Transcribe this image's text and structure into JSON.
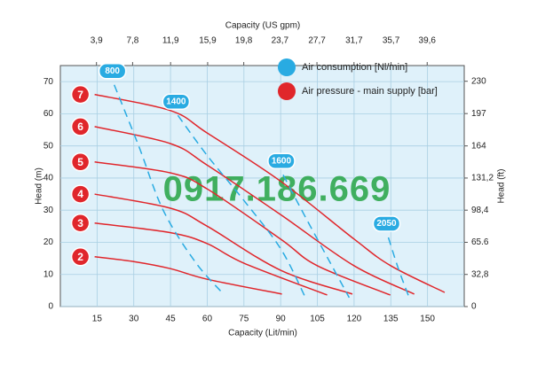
{
  "chart_data": {
    "type": "line",
    "x_title": "Capacity (Lit/min)",
    "x2_title": "Capacity (US gpm)",
    "y_title": "Head (m)",
    "y2_title": "Head (ft)",
    "xlim": [
      0,
      165
    ],
    "xticks": [
      15,
      30,
      45,
      60,
      75,
      90,
      105,
      120,
      135,
      150
    ],
    "x2lim": [
      0,
      43.6
    ],
    "x2ticks": [
      {
        "value": 3.9,
        "label": "3,9"
      },
      {
        "value": 7.8,
        "label": "7,8"
      },
      {
        "value": 11.9,
        "label": "11,9"
      },
      {
        "value": 15.9,
        "label": "15,9"
      },
      {
        "value": 19.8,
        "label": "19,8"
      },
      {
        "value": 23.7,
        "label": "23,7"
      },
      {
        "value": 27.7,
        "label": "27,7"
      },
      {
        "value": 31.7,
        "label": "31,7"
      },
      {
        "value": 35.7,
        "label": "35,7"
      },
      {
        "value": 39.6,
        "label": "39,6"
      }
    ],
    "ylim": [
      0,
      75
    ],
    "yticks": [
      0,
      10,
      20,
      30,
      40,
      50,
      60,
      70
    ],
    "y2lim": [
      0,
      246
    ],
    "y2ticks": [
      0,
      {
        "value": 32.8,
        "label": "32,8"
      },
      65.6,
      {
        "value": 98.4,
        "label": "98,4"
      },
      {
        "value": 131.2,
        "label": "131,2"
      },
      164,
      197,
      230
    ],
    "grid": true,
    "legend": [
      {
        "label": "Air consumption  [Nl/min]",
        "color": "#29abe2"
      },
      {
        "label": "Air pressure - main supply  [bar]",
        "color": "#e0262b"
      }
    ],
    "watermark": "0917.186.669",
    "series": [
      {
        "name": "7",
        "color": "#e0262b",
        "style": "solid",
        "x": [
          14,
          45,
          60,
          90,
          120,
          135,
          157
        ],
        "values": [
          66,
          61,
          54,
          39,
          21,
          12.7,
          4.4
        ]
      },
      {
        "name": "6",
        "color": "#e0262b",
        "style": "solid",
        "x": [
          14,
          45,
          60,
          90,
          120,
          144.6
        ],
        "values": [
          56,
          50.7,
          44,
          28.6,
          12.7,
          3.9
        ]
      },
      {
        "name": "5",
        "color": "#e0262b",
        "style": "solid",
        "x": [
          14,
          45,
          60,
          90,
          105,
          134.8
        ],
        "values": [
          45,
          41.6,
          36.6,
          21,
          12.7,
          3.6
        ]
      },
      {
        "name": "4",
        "color": "#e0262b",
        "style": "solid",
        "x": [
          14,
          45,
          60,
          90,
          119.3
        ],
        "values": [
          35,
          30.6,
          25,
          11.3,
          3.9
        ]
      },
      {
        "name": "3",
        "color": "#e0262b",
        "style": "solid",
        "x": [
          14,
          45,
          60,
          75,
          109
        ],
        "values": [
          26,
          23,
          19.6,
          13.5,
          3.6
        ]
      },
      {
        "name": "2",
        "color": "#e0262b",
        "style": "solid",
        "x": [
          14,
          30,
          45,
          60,
          90.5
        ],
        "values": [
          15.5,
          14,
          11.8,
          8.5,
          3.9
        ]
      },
      {
        "name": "800",
        "color": "#29abe2",
        "style": "dashed",
        "x": [
          22,
          32,
          42,
          55,
          66
        ],
        "values": [
          69,
          50,
          30,
          14,
          4.4
        ]
      },
      {
        "name": "1400",
        "color": "#29abe2",
        "style": "dashed",
        "x": [
          48,
          60,
          75,
          90,
          100
        ],
        "values": [
          59.5,
          47,
          33,
          18,
          3
        ]
      },
      {
        "name": "1600",
        "color": "#29abe2",
        "style": "dashed",
        "x": [
          91,
          100,
          110,
          118
        ],
        "values": [
          41,
          28,
          14,
          2.8
        ]
      },
      {
        "name": "2050",
        "color": "#29abe2",
        "style": "dashed",
        "x": [
          134,
          138,
          142.5
        ],
        "values": [
          21.5,
          12,
          2.8
        ]
      }
    ]
  }
}
